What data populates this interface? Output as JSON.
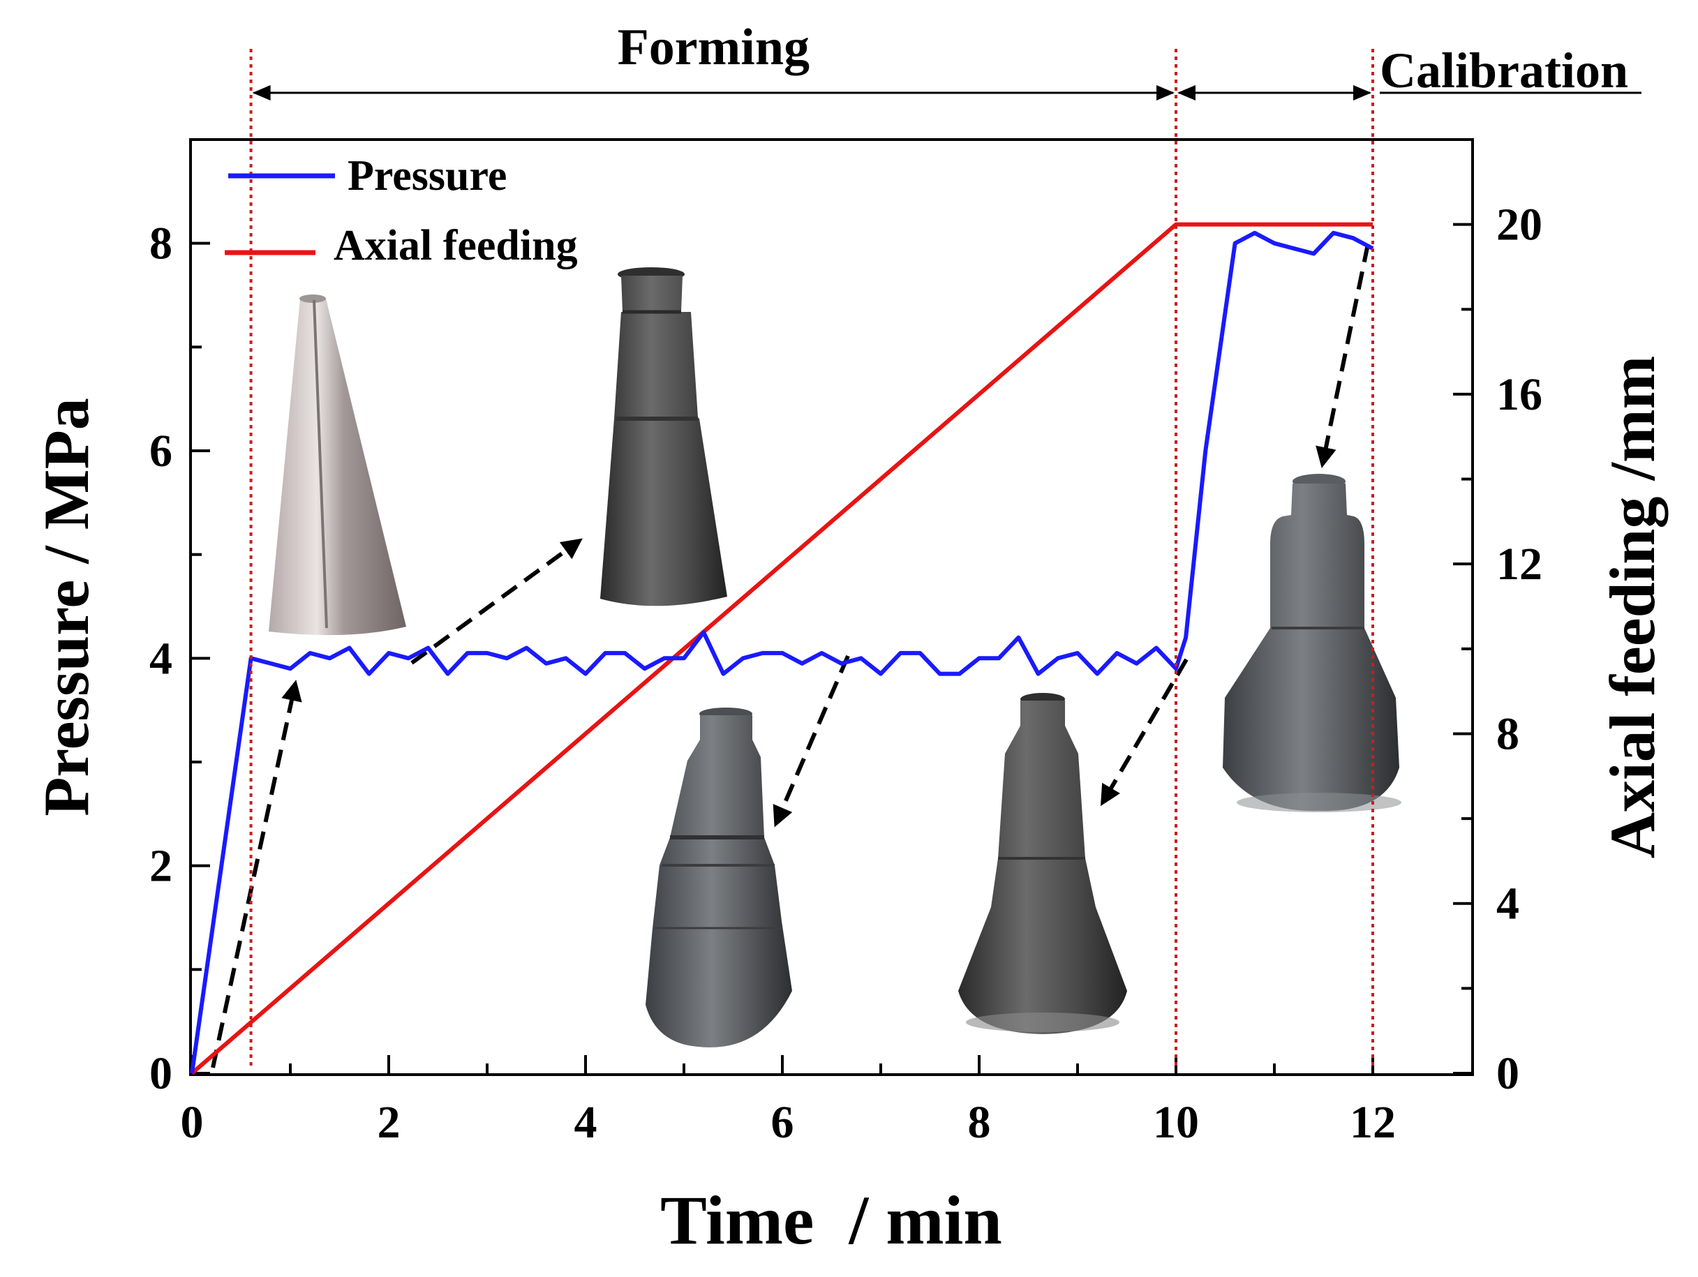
{
  "chart_data": {
    "type": "line",
    "xlabel": "Time  / min",
    "ylabel_left": "Pressure / MPa",
    "ylabel_right": "Axial feeding /mm",
    "xlim": [
      0,
      13
    ],
    "ylim_left": [
      0,
      9
    ],
    "ylim_right": [
      0,
      22
    ],
    "x_ticks": [
      0,
      2,
      4,
      6,
      8,
      10,
      12
    ],
    "y_ticks_left": [
      0,
      2,
      4,
      6,
      8
    ],
    "y_ticks_right": [
      0,
      4,
      8,
      12,
      16,
      20
    ],
    "legend": [
      "Pressure",
      "Axial feeding"
    ],
    "phases": [
      {
        "label": "Forming",
        "start": 0.6,
        "end": 10
      },
      {
        "label": "Calibration",
        "start": 10,
        "end": 12
      }
    ],
    "series": [
      {
        "name": "Pressure",
        "axis": "left",
        "color": "#1a1aff",
        "x": [
          0,
          0.6,
          1.0,
          1.2,
          1.4,
          1.6,
          1.8,
          2.0,
          2.2,
          2.4,
          2.6,
          2.8,
          3.0,
          3.2,
          3.4,
          3.6,
          3.8,
          4.0,
          4.2,
          4.4,
          4.6,
          4.8,
          5.0,
          5.2,
          5.4,
          5.6,
          5.8,
          6.0,
          6.2,
          6.4,
          6.6,
          6.8,
          7.0,
          7.2,
          7.4,
          7.6,
          7.8,
          8.0,
          8.2,
          8.4,
          8.6,
          8.8,
          9.0,
          9.2,
          9.4,
          9.6,
          9.8,
          10.0,
          10.1,
          10.3,
          10.6,
          10.8,
          11.0,
          11.2,
          11.4,
          11.6,
          11.8,
          12.0
        ],
        "y": [
          0,
          4.0,
          3.9,
          4.05,
          4.0,
          4.1,
          3.85,
          4.05,
          4.0,
          4.1,
          3.85,
          4.05,
          4.05,
          4.0,
          4.1,
          3.95,
          4.0,
          3.85,
          4.05,
          4.05,
          3.9,
          4.0,
          4.0,
          4.25,
          3.85,
          4.0,
          4.05,
          4.05,
          3.95,
          4.05,
          3.95,
          4.0,
          3.85,
          4.05,
          4.05,
          3.85,
          3.85,
          4.0,
          4.0,
          4.2,
          3.85,
          4.0,
          4.05,
          3.85,
          4.05,
          3.95,
          4.1,
          3.9,
          4.2,
          6.0,
          8.0,
          8.1,
          8.0,
          7.95,
          7.9,
          8.1,
          8.05,
          7.95
        ]
      },
      {
        "name": "Axial feeding",
        "axis": "right",
        "color": "#e81414",
        "x": [
          0,
          10,
          12
        ],
        "y": [
          0,
          20,
          20
        ]
      }
    ],
    "annotations": [
      {
        "type": "photo",
        "depicts": "initial conical tube"
      },
      {
        "type": "photo",
        "depicts": "formed part, first step"
      },
      {
        "type": "photo",
        "depicts": "formed part, second step"
      },
      {
        "type": "photo",
        "depicts": "formed part, third step"
      },
      {
        "type": "photo",
        "depicts": "final calibrated part"
      }
    ]
  }
}
